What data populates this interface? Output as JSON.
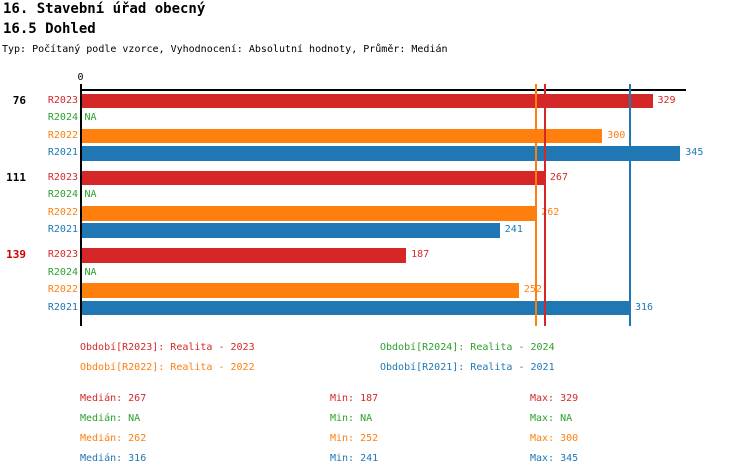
{
  "title": "16. Stavební úřad obecný",
  "subtitle": "16.5 Dohled",
  "meta_line": "Typ: Počítaný podle vzorce, Vyhodnocení: Absolutní hodnoty, Průměr: Medián",
  "colors": {
    "R2023": "#d62728",
    "R2024": "#2ca02c",
    "R2022": "#ff7f0e",
    "R2021": "#1f77b4",
    "highlight_group": "#cc0000",
    "axis": "#000000"
  },
  "chart_data": {
    "type": "bar",
    "orientation": "horizontal",
    "axis": {
      "zero_label": "0",
      "xmax": 348,
      "grid": false
    },
    "series_order": [
      "R2023",
      "R2024",
      "R2022",
      "R2021"
    ],
    "groups": [
      {
        "label": "76",
        "highlighted": false,
        "bars": [
          {
            "series": "R2023",
            "value": 329,
            "label": "329"
          },
          {
            "series": "R2024",
            "value": null,
            "label": "NA"
          },
          {
            "series": "R2022",
            "value": 300,
            "label": "300"
          },
          {
            "series": "R2021",
            "value": 345,
            "label": "345"
          }
        ]
      },
      {
        "label": "111",
        "highlighted": false,
        "bars": [
          {
            "series": "R2023",
            "value": 267,
            "label": "267"
          },
          {
            "series": "R2024",
            "value": null,
            "label": "NA"
          },
          {
            "series": "R2022",
            "value": 262,
            "label": "262"
          },
          {
            "series": "R2021",
            "value": 241,
            "label": "241"
          }
        ]
      },
      {
        "label": "139",
        "highlighted": true,
        "bars": [
          {
            "series": "R2023",
            "value": 187,
            "label": "187"
          },
          {
            "series": "R2024",
            "value": null,
            "label": "NA"
          },
          {
            "series": "R2022",
            "value": 252,
            "label": "252"
          },
          {
            "series": "R2021",
            "value": 316,
            "label": "316"
          }
        ]
      }
    ],
    "median_lines": [
      {
        "series": "R2023",
        "value": 267
      },
      {
        "series": "R2022",
        "value": 262
      },
      {
        "series": "R2021",
        "value": 316
      }
    ]
  },
  "legend": {
    "left": [
      {
        "series": "R2023",
        "label": "Období[R2023]: Realita - 2023"
      },
      {
        "series": "R2022",
        "label": "Období[R2022]: Realita - 2022"
      }
    ],
    "right": [
      {
        "series": "R2024",
        "label": "Období[R2024]: Realita - 2024"
      },
      {
        "series": "R2021",
        "label": "Období[R2021]: Realita - 2021"
      }
    ]
  },
  "stats": {
    "labels": {
      "median": "Medián:",
      "min": "Min:",
      "max": "Max:"
    },
    "rows": [
      {
        "series": "R2023",
        "median": "267",
        "min": "187",
        "max": "329"
      },
      {
        "series": "R2024",
        "median": "NA",
        "min": "NA",
        "max": "NA"
      },
      {
        "series": "R2022",
        "median": "262",
        "min": "252",
        "max": "300"
      },
      {
        "series": "R2021",
        "median": "316",
        "min": "241",
        "max": "345"
      }
    ]
  }
}
